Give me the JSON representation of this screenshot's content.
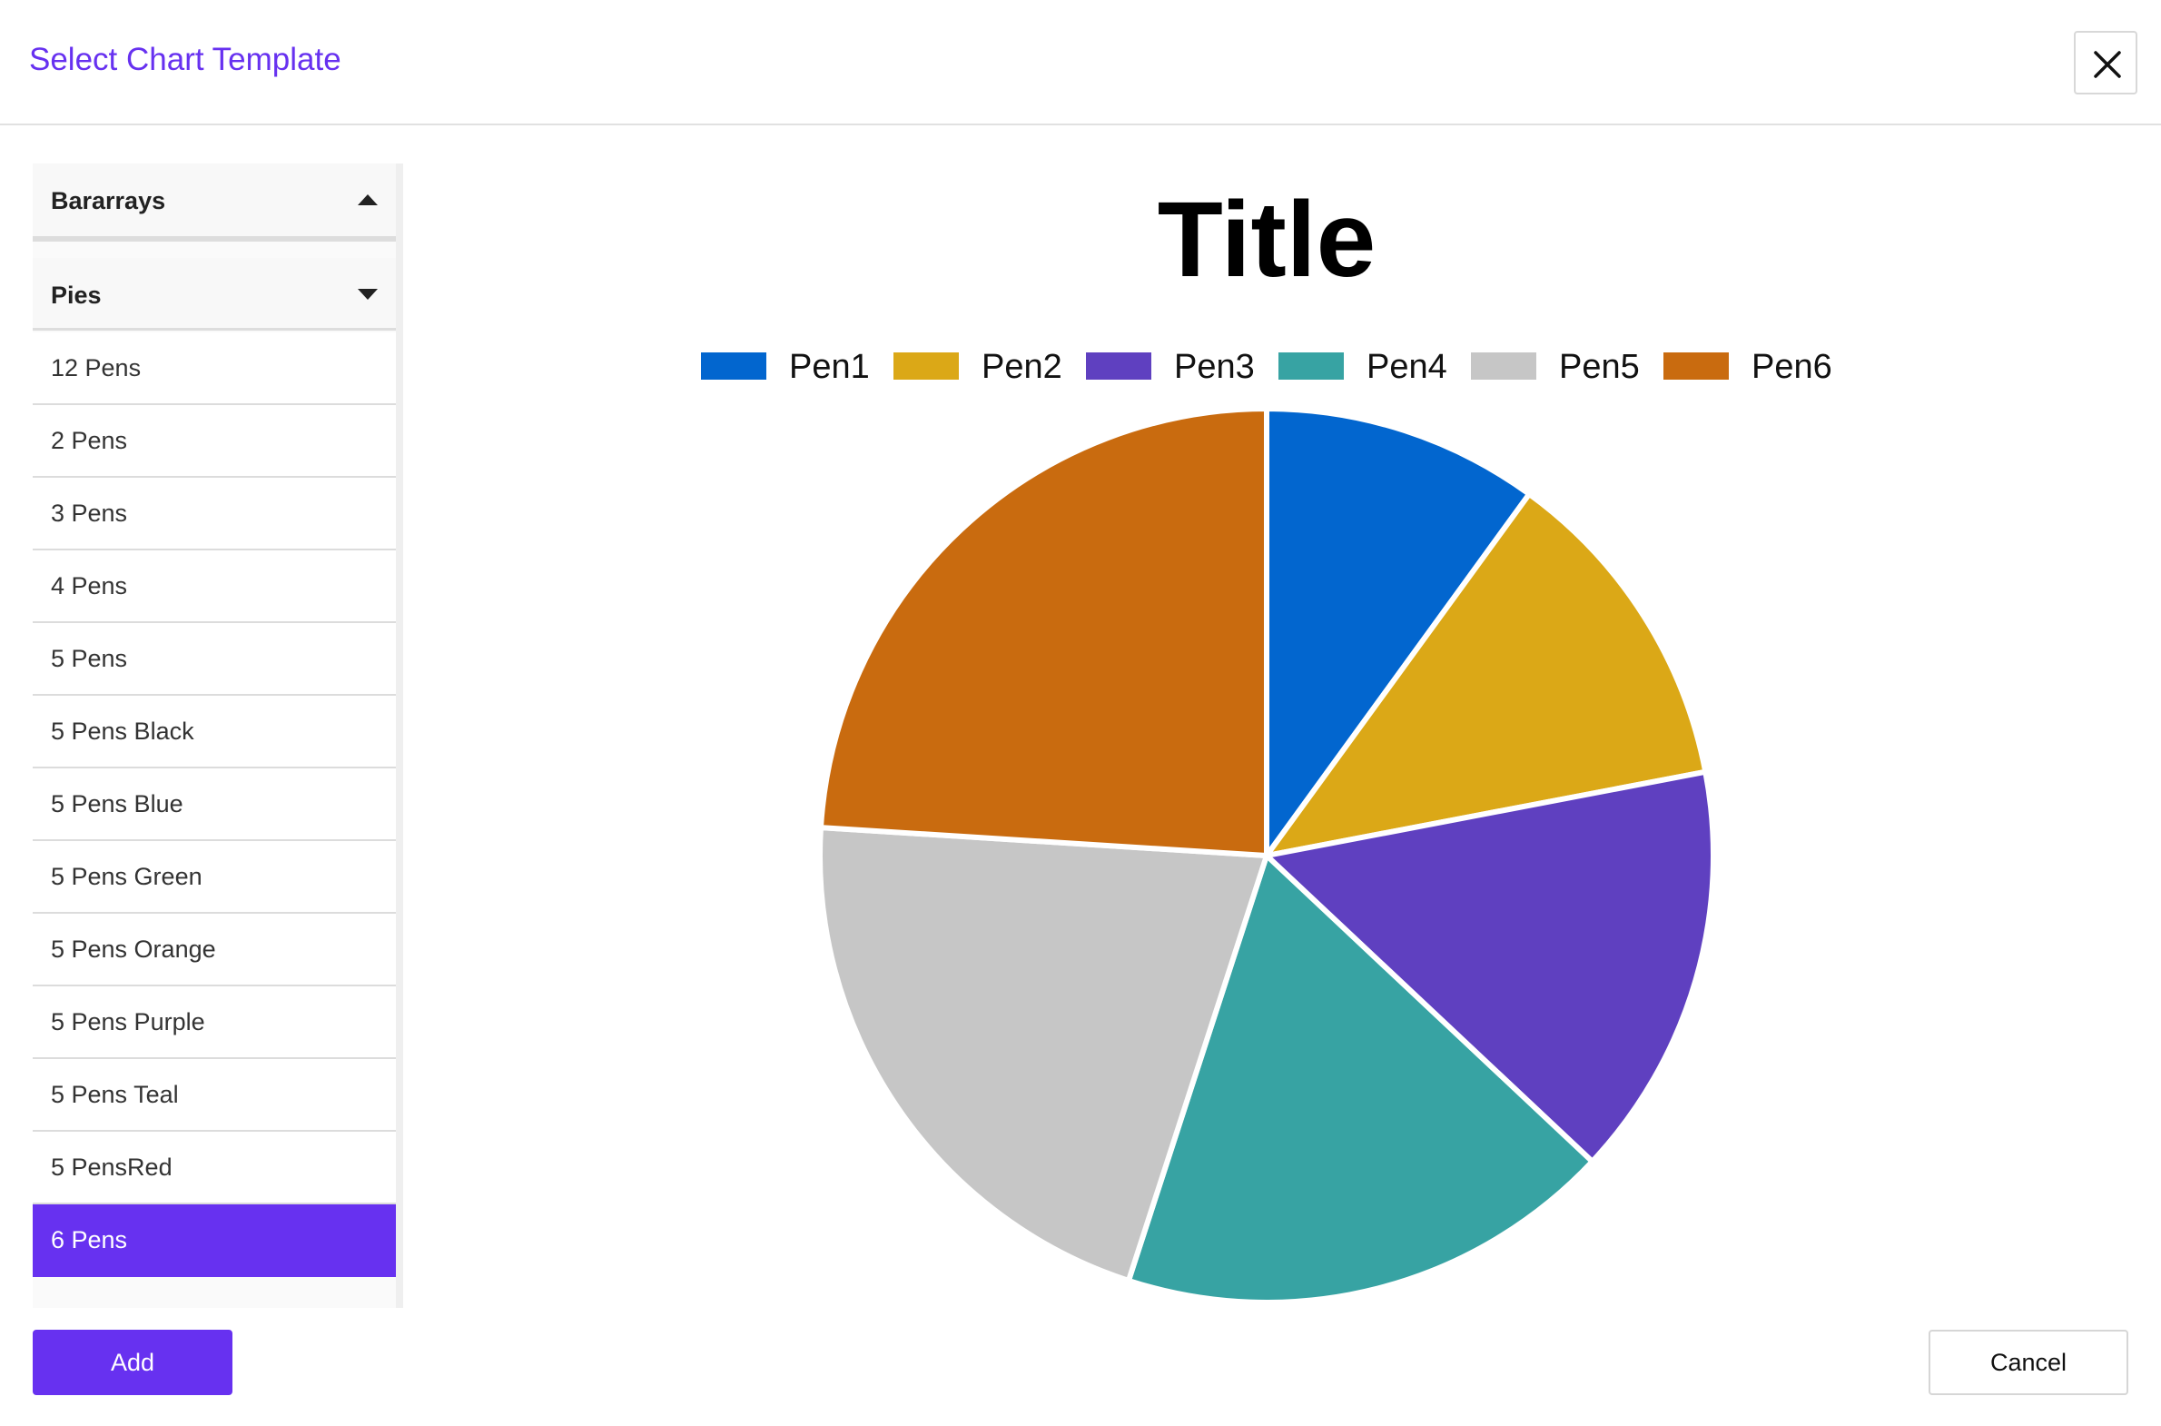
{
  "dialog": {
    "title": "Select Chart Template",
    "close_icon": "close-icon"
  },
  "sidebar": {
    "groups": [
      {
        "label": "Bararrays",
        "icon": "caret-up-icon",
        "expanded": false
      },
      {
        "label": "Pies",
        "icon": "caret-down-icon",
        "expanded": true
      }
    ],
    "items": [
      {
        "label": "12 Pens"
      },
      {
        "label": "2 Pens"
      },
      {
        "label": "3 Pens"
      },
      {
        "label": "4 Pens"
      },
      {
        "label": "5 Pens"
      },
      {
        "label": "5 Pens Black"
      },
      {
        "label": "5 Pens Blue"
      },
      {
        "label": "5 Pens Green"
      },
      {
        "label": "5 Pens Orange"
      },
      {
        "label": "5 Pens Purple"
      },
      {
        "label": "5 Pens Teal"
      },
      {
        "label": "5 PensRed"
      },
      {
        "label": "6 Pens",
        "selected": true
      }
    ],
    "selected_color": "#6731f0"
  },
  "chart_data": {
    "type": "pie",
    "title": "Title",
    "legend": "top",
    "slices": [
      {
        "name": "Pen1",
        "value": 10,
        "color": "#0266cf"
      },
      {
        "name": "Pen2",
        "value": 12,
        "color": "#dba817"
      },
      {
        "name": "Pen3",
        "value": 15,
        "color": "#5f40c0"
      },
      {
        "name": "Pen4",
        "value": 18,
        "color": "#37a3a3"
      },
      {
        "name": "Pen5",
        "value": 21,
        "color": "#c6c6c6"
      },
      {
        "name": "Pen6",
        "value": 24,
        "color": "#c96b0f"
      }
    ]
  },
  "footer": {
    "add_label": "Add",
    "cancel_label": "Cancel"
  }
}
